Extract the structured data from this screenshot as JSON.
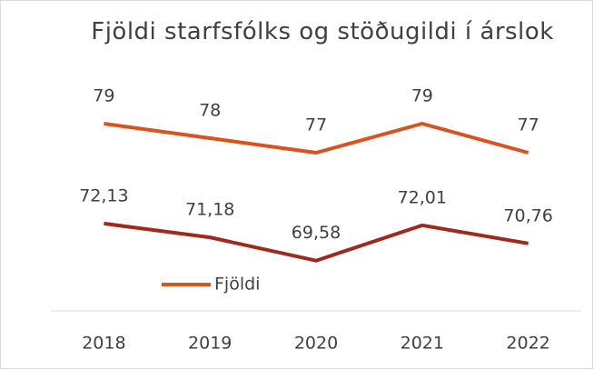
{
  "chart_data": {
    "type": "line",
    "title": "Fjöldi starfsfólks og stöðugildi í árslok",
    "categories": [
      "2018",
      "2019",
      "2020",
      "2021",
      "2022"
    ],
    "series": [
      {
        "name": "Fjöldi",
        "color": "#d9531e",
        "values": [
          79,
          78,
          77,
          79,
          77
        ]
      },
      {
        "color": "#9e2a1d",
        "values": [
          72.13,
          71.18,
          69.58,
          72.01,
          70.76
        ],
        "value_labels": [
          "72,13",
          "71,18",
          "69,58",
          "72,01",
          "70,76"
        ]
      }
    ],
    "ylim": [
      66,
      81.5
    ],
    "grid": false,
    "legend": "bottom"
  }
}
